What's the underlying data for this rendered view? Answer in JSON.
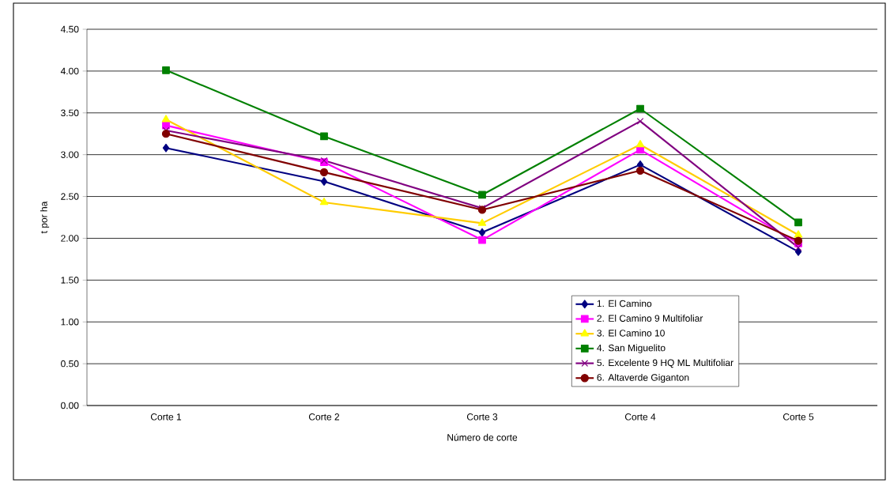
{
  "chart_data": {
    "type": "line",
    "xlabel": "Número de corte",
    "ylabel": "t por ha",
    "categories": [
      "Corte 1",
      "Corte 2",
      "Corte 3",
      "Corte 4",
      "Corte 5"
    ],
    "ylim": [
      0,
      4.5
    ],
    "yticks": [
      {
        "value": 0,
        "label": "0.00"
      },
      {
        "value": 0.5,
        "label": "0.50"
      },
      {
        "value": 1,
        "label": "1.00"
      },
      {
        "value": 1.5,
        "label": "1.50"
      },
      {
        "value": 2,
        "label": "2.00"
      },
      {
        "value": 2.5,
        "label": "2.50"
      },
      {
        "value": 3,
        "label": "3.00"
      },
      {
        "value": 3.5,
        "label": "3.50"
      },
      {
        "value": 4,
        "label": "4.00"
      },
      {
        "value": 4.5,
        "label": "4.50"
      }
    ],
    "grid": "y",
    "legend": "bottom right",
    "line_style": "solid",
    "series": [
      {
        "name": "1. El Camino",
        "color": "#000080",
        "marker": "diamond",
        "values": [
          3.08,
          2.68,
          2.07,
          2.88,
          1.84
        ]
      },
      {
        "name": "2. El Camino 9 Multifoliar",
        "color": "#ff00ff",
        "marker": "square",
        "values": [
          3.35,
          2.91,
          1.98,
          3.06,
          1.94
        ]
      },
      {
        "name": "3. El Camino 10",
        "color": "#ffcc00",
        "marker": "triangle",
        "values": [
          3.42,
          2.43,
          2.18,
          3.12,
          2.04
        ]
      },
      {
        "name": "4. San Miguelito",
        "color": "#008000",
        "marker": "square",
        "values": [
          4.01,
          3.22,
          2.52,
          3.55,
          2.19
        ]
      },
      {
        "name": "5. Excelente 9 HQ ML Multifoliar",
        "color": "#800080",
        "marker": "cross",
        "values": [
          3.29,
          2.93,
          2.36,
          3.4,
          1.89
        ]
      },
      {
        "name": "6. Altaverde Giganton",
        "color": "#800000",
        "marker": "circle",
        "values": [
          3.25,
          2.79,
          2.34,
          2.81,
          1.97
        ]
      }
    ]
  }
}
